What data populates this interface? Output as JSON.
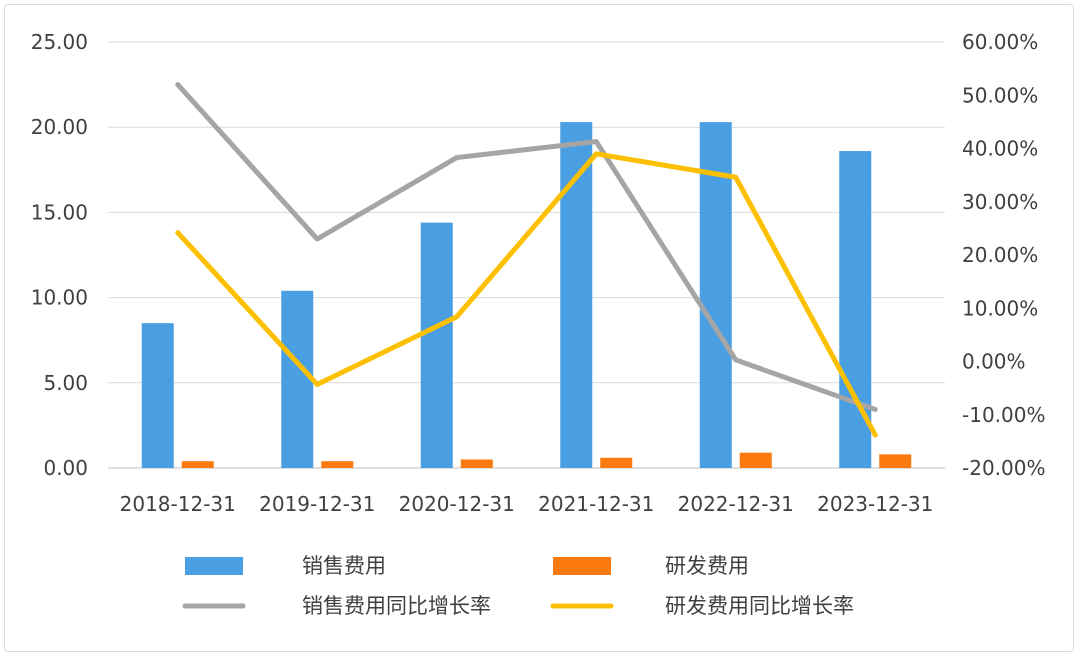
{
  "chart_data": {
    "type": "bar",
    "categories": [
      "2018-12-31",
      "2019-12-31",
      "2020-12-31",
      "2021-12-31",
      "2022-12-31",
      "2023-12-31"
    ],
    "y_left": {
      "ylim": [
        0,
        25
      ],
      "ticks": [
        0,
        5,
        10,
        15,
        20,
        25
      ],
      "tick_labels": [
        "0.00",
        "5.00",
        "10.00",
        "15.00",
        "20.00",
        "25.00"
      ]
    },
    "y_right": {
      "ylim": [
        -20,
        60
      ],
      "ticks": [
        -20,
        -10,
        0,
        10,
        20,
        30,
        40,
        50,
        60
      ],
      "tick_labels": [
        "-20.00%",
        "-10.00%",
        "0.00%",
        "10.00%",
        "20.00%",
        "30.00%",
        "40.00%",
        "50.00%",
        "60.00%"
      ]
    },
    "grid": true,
    "legend_position": "bottom",
    "series": [
      {
        "name": "销售费用",
        "type": "bar",
        "axis": "left",
        "color": "#4a9ee2",
        "values": [
          8.5,
          10.4,
          14.4,
          20.3,
          20.3,
          18.6
        ]
      },
      {
        "name": "研发费用",
        "type": "bar",
        "axis": "left",
        "color": "#fb7a0f",
        "values": [
          0.4,
          0.4,
          0.5,
          0.6,
          0.9,
          0.8
        ]
      },
      {
        "name": "销售费用同比增长率",
        "type": "line",
        "axis": "right",
        "color": "#a5a5a5",
        "values": [
          52.0,
          23.0,
          38.3,
          41.3,
          0.3,
          -9.0
        ]
      },
      {
        "name": "研发费用同比增长率",
        "type": "line",
        "axis": "right",
        "color": "#fcc000",
        "values": [
          24.2,
          -4.3,
          8.4,
          39.0,
          34.6,
          -13.8
        ]
      }
    ]
  }
}
